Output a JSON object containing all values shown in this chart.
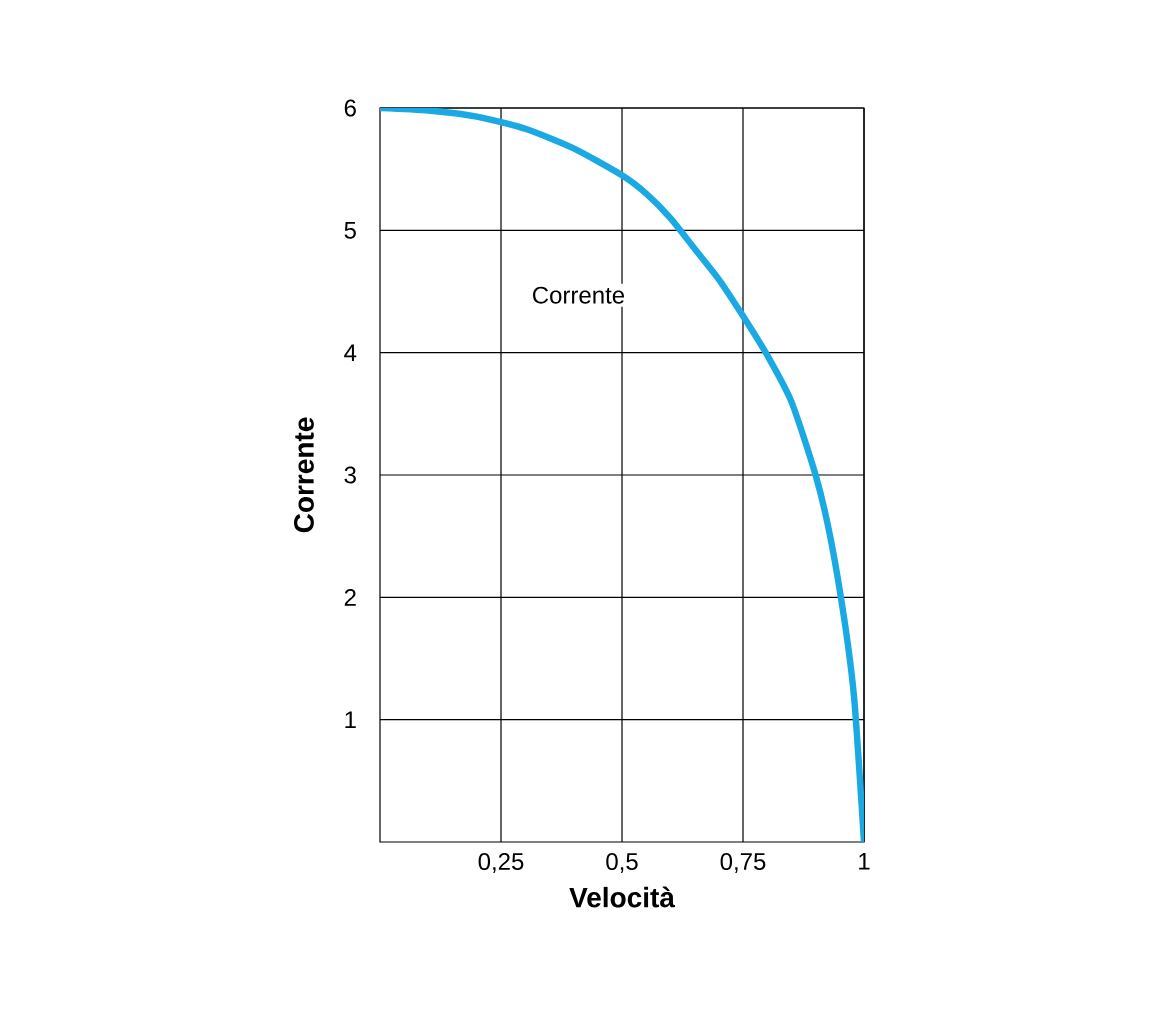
{
  "chart_data": {
    "type": "line",
    "xlabel": "Velocità",
    "ylabel": "Corrente",
    "xlim": [
      0,
      1
    ],
    "ylim": [
      0,
      6
    ],
    "xticks": [
      {
        "value": 0.25,
        "label": "0,25"
      },
      {
        "value": 0.5,
        "label": "0,5"
      },
      {
        "value": 0.75,
        "label": "0,75"
      },
      1
    ],
    "yticks": [
      1,
      2,
      3,
      4,
      5,
      6
    ],
    "grid": true,
    "annotations": [
      "Corrente"
    ],
    "series": [
      {
        "color": "#1ba9e4",
        "x": [
          0,
          0.1,
          0.2,
          0.3,
          0.4,
          0.5,
          0.55,
          0.6,
          0.65,
          0.7,
          0.75,
          0.8,
          0.85,
          0.9,
          0.93,
          0.96,
          0.98,
          1.0
        ],
        "values": [
          6,
          5.98,
          5.93,
          5.83,
          5.67,
          5.45,
          5.3,
          5.1,
          4.85,
          4.6,
          4.3,
          3.98,
          3.6,
          3.0,
          2.5,
          1.8,
          1.16,
          0
        ]
      }
    ]
  }
}
